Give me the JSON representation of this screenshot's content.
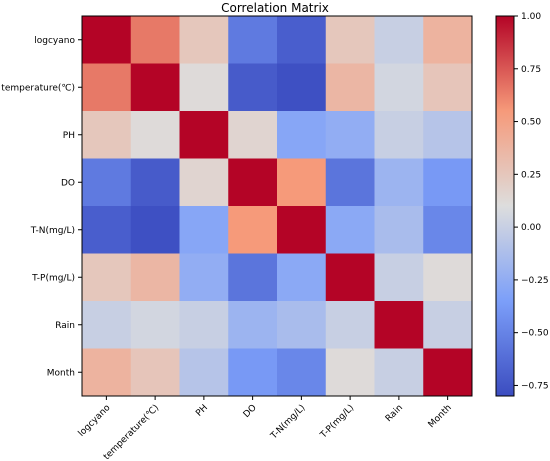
{
  "chart_data": {
    "type": "heatmap",
    "title": "Correlation Matrix",
    "xlabel": "",
    "ylabel": "",
    "row_labels": [
      "logcyano",
      "temperature(℃)",
      "PH",
      "DO",
      "T-N(mg/L)",
      "T-P(mg/L)",
      "Rain",
      "Month"
    ],
    "col_labels": [
      "logcyano",
      "temperature(℃)",
      "PH",
      "DO",
      "T-N(mg/L)",
      "T-P(mg/L)",
      "Rain",
      "Month"
    ],
    "values": [
      [
        1.0,
        0.65,
        0.25,
        -0.55,
        -0.7,
        0.25,
        0.0,
        0.38
      ],
      [
        0.65,
        1.0,
        0.12,
        -0.72,
        -0.78,
        0.36,
        0.05,
        0.26
      ],
      [
        0.25,
        0.12,
        1.0,
        0.16,
        -0.3,
        -0.25,
        0.0,
        -0.08
      ],
      [
        -0.55,
        -0.72,
        0.16,
        1.0,
        0.55,
        -0.58,
        -0.2,
        -0.38
      ],
      [
        -0.7,
        -0.78,
        -0.3,
        0.55,
        1.0,
        -0.28,
        -0.14,
        -0.48
      ],
      [
        0.25,
        0.36,
        -0.25,
        -0.58,
        -0.28,
        1.0,
        0.0,
        0.12
      ],
      [
        0.0,
        0.05,
        0.0,
        -0.2,
        -0.14,
        0.0,
        1.0,
        0.0
      ],
      [
        0.38,
        0.26,
        -0.08,
        -0.38,
        -0.48,
        0.12,
        0.0,
        1.0
      ]
    ],
    "colormap": "coolwarm",
    "vmin": -0.8,
    "vmax": 1.0,
    "colorbar_ticks": [
      "1.00",
      "0.75",
      "0.50",
      "0.25",
      "0.00",
      "−0.25",
      "−0.50",
      "−0.75"
    ],
    "colorbar_tick_values": [
      1.0,
      0.75,
      0.5,
      0.25,
      0.0,
      -0.25,
      -0.5,
      -0.75
    ]
  }
}
